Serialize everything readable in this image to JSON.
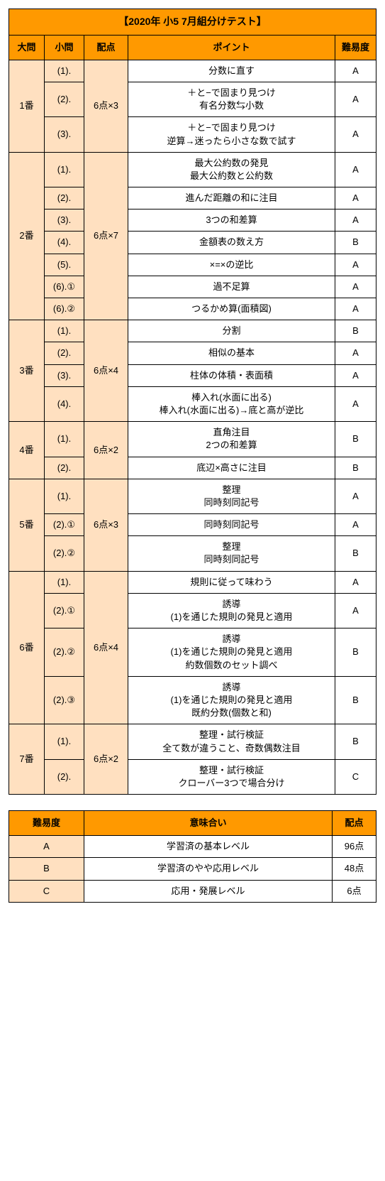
{
  "title": "【2020年 小5 7月組分けテスト】",
  "headers": {
    "daimon": "大問",
    "shomon": "小問",
    "haiten": "配点",
    "point": "ポイント",
    "difficulty": "難易度"
  },
  "groups": [
    {
      "daimon": "1番",
      "haiten": "6点×3",
      "rows": [
        {
          "shomon": "(1).",
          "point": "分数に直す",
          "diff": "A"
        },
        {
          "shomon": "(2).",
          "point": "＋と−で固まり見つけ\n有名分数⇆小数",
          "diff": "A"
        },
        {
          "shomon": "(3).",
          "point": "＋と−で固まり見つけ\n逆算→迷ったら小さな数で試す",
          "diff": "A"
        }
      ]
    },
    {
      "daimon": "2番",
      "haiten": "6点×7",
      "rows": [
        {
          "shomon": "(1).",
          "point": "最大公約数の発見\n最大公約数と公約数",
          "diff": "A"
        },
        {
          "shomon": "(2).",
          "point": "進んだ距離の和に注目",
          "diff": "A"
        },
        {
          "shomon": "(3).",
          "point": "3つの和差算",
          "diff": "A"
        },
        {
          "shomon": "(4).",
          "point": "金額表の数え方",
          "diff": "B"
        },
        {
          "shomon": "(5).",
          "point": "×=×の逆比",
          "diff": "A"
        },
        {
          "shomon": "(6).①",
          "point": "過不足算",
          "diff": "A"
        },
        {
          "shomon": "(6).②",
          "point": "つるかめ算(面積図)",
          "diff": "A"
        }
      ]
    },
    {
      "daimon": "3番",
      "haiten": "6点×4",
      "rows": [
        {
          "shomon": "(1).",
          "point": "分割",
          "diff": "B"
        },
        {
          "shomon": "(2).",
          "point": "相似の基本",
          "diff": "A"
        },
        {
          "shomon": "(3).",
          "point": "柱体の体積・表面積",
          "diff": "A"
        },
        {
          "shomon": "(4).",
          "point": "棒入れ(水面に出る)\n棒入れ(水面に出る)→底と高が逆比",
          "diff": "A"
        }
      ]
    },
    {
      "daimon": "4番",
      "haiten": "6点×2",
      "rows": [
        {
          "shomon": "(1).",
          "point": "直角注目\n2つの和差算",
          "diff": "B"
        },
        {
          "shomon": "(2).",
          "point": "底辺×高さに注目",
          "diff": "B"
        }
      ]
    },
    {
      "daimon": "5番",
      "haiten": "6点×3",
      "rows": [
        {
          "shomon": "(1).",
          "point": "整理\n同時刻同記号",
          "diff": "A"
        },
        {
          "shomon": "(2).①",
          "point": "同時刻同記号",
          "diff": "A"
        },
        {
          "shomon": "(2).②",
          "point": "整理\n同時刻同記号",
          "diff": "B"
        }
      ]
    },
    {
      "daimon": "6番",
      "haiten": "6点×4",
      "rows": [
        {
          "shomon": "(1).",
          "point": "規則に従って味わう",
          "diff": "A"
        },
        {
          "shomon": "(2).①",
          "point": "誘導\n(1)を通じた規則の発見と適用",
          "diff": "A"
        },
        {
          "shomon": "(2).②",
          "point": "誘導\n(1)を通じた規則の発見と適用\n約数個数のセット調べ",
          "diff": "B"
        },
        {
          "shomon": "(2).③",
          "point": "誘導\n(1)を通じた規則の発見と適用\n既約分数(個数と和)",
          "diff": "B"
        }
      ]
    },
    {
      "daimon": "7番",
      "haiten": "6点×2",
      "rows": [
        {
          "shomon": "(1).",
          "point": "整理・試行検証\n全て数が違うこと、奇数偶数注目",
          "diff": "B"
        },
        {
          "shomon": "(2).",
          "point": "整理・試行検証\nクローバー3つで場合分け",
          "diff": "C"
        }
      ]
    }
  ],
  "legend": {
    "headers": {
      "difficulty": "難易度",
      "meaning": "意味合い",
      "points": "配点"
    },
    "rows": [
      {
        "diff": "A",
        "meaning": "学習済の基本レベル",
        "pts": "96点"
      },
      {
        "diff": "B",
        "meaning": "学習済のやや応用レベル",
        "pts": "48点"
      },
      {
        "diff": "C",
        "meaning": "応用・発展レベル",
        "pts": "6点"
      }
    ]
  }
}
